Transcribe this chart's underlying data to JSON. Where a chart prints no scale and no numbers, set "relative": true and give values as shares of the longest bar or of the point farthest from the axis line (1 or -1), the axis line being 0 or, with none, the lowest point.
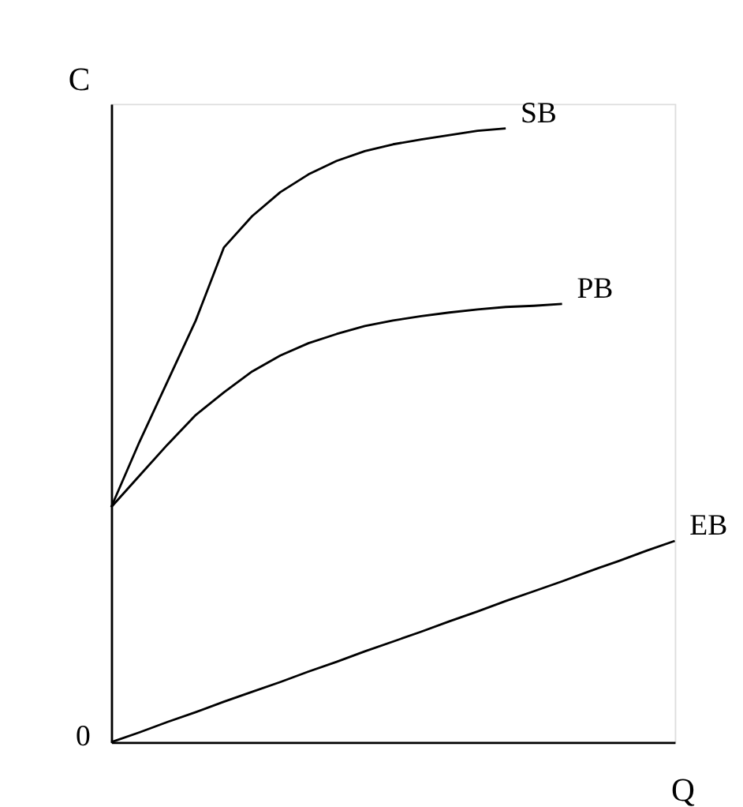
{
  "chart_data": {
    "type": "line",
    "relative": true,
    "xlabel": "Q",
    "ylabel": "C",
    "annotations": [
      "0"
    ],
    "grid": false,
    "categories": [
      null,
      null,
      null,
      null,
      null,
      null,
      null,
      null,
      null,
      null,
      null,
      null,
      null,
      null,
      null,
      null,
      null,
      null,
      null,
      null,
      null
    ],
    "series": [
      {
        "name": "SB",
        "color": "#000000",
        "values": [
          0.383,
          0.489,
          0.588,
          0.687,
          0.806,
          0.857,
          0.896,
          0.925,
          0.947,
          0.963,
          0.974,
          0.982,
          0.989,
          0.996,
          1.0,
          null,
          null,
          null,
          null,
          null,
          null
        ]
      },
      {
        "name": "PB",
        "color": "#000000",
        "values": [
          0.383,
          0.434,
          0.485,
          0.533,
          0.57,
          0.604,
          0.63,
          0.65,
          0.665,
          0.678,
          0.687,
          0.694,
          0.7,
          0.705,
          0.709,
          0.711,
          0.714,
          null,
          null,
          null,
          null
        ]
      },
      {
        "name": "EB",
        "color": "#000000",
        "values": [
          0,
          0.016,
          0.033,
          0.049,
          0.066,
          0.082,
          0.098,
          0.115,
          0.131,
          0.148,
          0.164,
          0.18,
          0.197,
          0.213,
          0.23,
          0.246,
          0.262,
          0.279,
          0.295,
          0.312,
          0.328
        ]
      }
    ]
  }
}
